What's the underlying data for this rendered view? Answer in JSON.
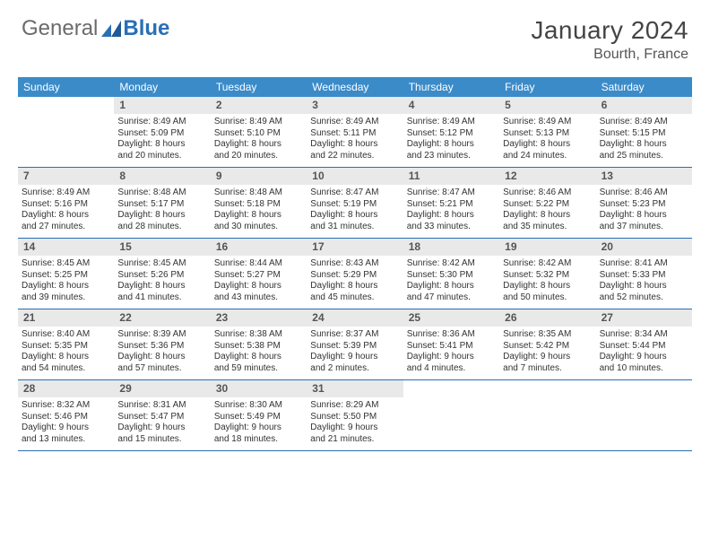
{
  "logo": {
    "text1": "General",
    "text2": "Blue"
  },
  "title": "January 2024",
  "location": "Bourth, France",
  "colors": {
    "header_bg": "#3b8bc9",
    "band_bg": "#e9e9e9",
    "rule": "#2a6fb5",
    "logo_gray": "#6b6b6b",
    "logo_blue": "#2a6fb5"
  },
  "weekdays": [
    "Sunday",
    "Monday",
    "Tuesday",
    "Wednesday",
    "Thursday",
    "Friday",
    "Saturday"
  ],
  "weeks": [
    [
      {
        "n": "",
        "sr": "",
        "ss": "",
        "d1": "",
        "d2": ""
      },
      {
        "n": "1",
        "sr": "Sunrise: 8:49 AM",
        "ss": "Sunset: 5:09 PM",
        "d1": "Daylight: 8 hours",
        "d2": "and 20 minutes."
      },
      {
        "n": "2",
        "sr": "Sunrise: 8:49 AM",
        "ss": "Sunset: 5:10 PM",
        "d1": "Daylight: 8 hours",
        "d2": "and 20 minutes."
      },
      {
        "n": "3",
        "sr": "Sunrise: 8:49 AM",
        "ss": "Sunset: 5:11 PM",
        "d1": "Daylight: 8 hours",
        "d2": "and 22 minutes."
      },
      {
        "n": "4",
        "sr": "Sunrise: 8:49 AM",
        "ss": "Sunset: 5:12 PM",
        "d1": "Daylight: 8 hours",
        "d2": "and 23 minutes."
      },
      {
        "n": "5",
        "sr": "Sunrise: 8:49 AM",
        "ss": "Sunset: 5:13 PM",
        "d1": "Daylight: 8 hours",
        "d2": "and 24 minutes."
      },
      {
        "n": "6",
        "sr": "Sunrise: 8:49 AM",
        "ss": "Sunset: 5:15 PM",
        "d1": "Daylight: 8 hours",
        "d2": "and 25 minutes."
      }
    ],
    [
      {
        "n": "7",
        "sr": "Sunrise: 8:49 AM",
        "ss": "Sunset: 5:16 PM",
        "d1": "Daylight: 8 hours",
        "d2": "and 27 minutes."
      },
      {
        "n": "8",
        "sr": "Sunrise: 8:48 AM",
        "ss": "Sunset: 5:17 PM",
        "d1": "Daylight: 8 hours",
        "d2": "and 28 minutes."
      },
      {
        "n": "9",
        "sr": "Sunrise: 8:48 AM",
        "ss": "Sunset: 5:18 PM",
        "d1": "Daylight: 8 hours",
        "d2": "and 30 minutes."
      },
      {
        "n": "10",
        "sr": "Sunrise: 8:47 AM",
        "ss": "Sunset: 5:19 PM",
        "d1": "Daylight: 8 hours",
        "d2": "and 31 minutes."
      },
      {
        "n": "11",
        "sr": "Sunrise: 8:47 AM",
        "ss": "Sunset: 5:21 PM",
        "d1": "Daylight: 8 hours",
        "d2": "and 33 minutes."
      },
      {
        "n": "12",
        "sr": "Sunrise: 8:46 AM",
        "ss": "Sunset: 5:22 PM",
        "d1": "Daylight: 8 hours",
        "d2": "and 35 minutes."
      },
      {
        "n": "13",
        "sr": "Sunrise: 8:46 AM",
        "ss": "Sunset: 5:23 PM",
        "d1": "Daylight: 8 hours",
        "d2": "and 37 minutes."
      }
    ],
    [
      {
        "n": "14",
        "sr": "Sunrise: 8:45 AM",
        "ss": "Sunset: 5:25 PM",
        "d1": "Daylight: 8 hours",
        "d2": "and 39 minutes."
      },
      {
        "n": "15",
        "sr": "Sunrise: 8:45 AM",
        "ss": "Sunset: 5:26 PM",
        "d1": "Daylight: 8 hours",
        "d2": "and 41 minutes."
      },
      {
        "n": "16",
        "sr": "Sunrise: 8:44 AM",
        "ss": "Sunset: 5:27 PM",
        "d1": "Daylight: 8 hours",
        "d2": "and 43 minutes."
      },
      {
        "n": "17",
        "sr": "Sunrise: 8:43 AM",
        "ss": "Sunset: 5:29 PM",
        "d1": "Daylight: 8 hours",
        "d2": "and 45 minutes."
      },
      {
        "n": "18",
        "sr": "Sunrise: 8:42 AM",
        "ss": "Sunset: 5:30 PM",
        "d1": "Daylight: 8 hours",
        "d2": "and 47 minutes."
      },
      {
        "n": "19",
        "sr": "Sunrise: 8:42 AM",
        "ss": "Sunset: 5:32 PM",
        "d1": "Daylight: 8 hours",
        "d2": "and 50 minutes."
      },
      {
        "n": "20",
        "sr": "Sunrise: 8:41 AM",
        "ss": "Sunset: 5:33 PM",
        "d1": "Daylight: 8 hours",
        "d2": "and 52 minutes."
      }
    ],
    [
      {
        "n": "21",
        "sr": "Sunrise: 8:40 AM",
        "ss": "Sunset: 5:35 PM",
        "d1": "Daylight: 8 hours",
        "d2": "and 54 minutes."
      },
      {
        "n": "22",
        "sr": "Sunrise: 8:39 AM",
        "ss": "Sunset: 5:36 PM",
        "d1": "Daylight: 8 hours",
        "d2": "and 57 minutes."
      },
      {
        "n": "23",
        "sr": "Sunrise: 8:38 AM",
        "ss": "Sunset: 5:38 PM",
        "d1": "Daylight: 8 hours",
        "d2": "and 59 minutes."
      },
      {
        "n": "24",
        "sr": "Sunrise: 8:37 AM",
        "ss": "Sunset: 5:39 PM",
        "d1": "Daylight: 9 hours",
        "d2": "and 2 minutes."
      },
      {
        "n": "25",
        "sr": "Sunrise: 8:36 AM",
        "ss": "Sunset: 5:41 PM",
        "d1": "Daylight: 9 hours",
        "d2": "and 4 minutes."
      },
      {
        "n": "26",
        "sr": "Sunrise: 8:35 AM",
        "ss": "Sunset: 5:42 PM",
        "d1": "Daylight: 9 hours",
        "d2": "and 7 minutes."
      },
      {
        "n": "27",
        "sr": "Sunrise: 8:34 AM",
        "ss": "Sunset: 5:44 PM",
        "d1": "Daylight: 9 hours",
        "d2": "and 10 minutes."
      }
    ],
    [
      {
        "n": "28",
        "sr": "Sunrise: 8:32 AM",
        "ss": "Sunset: 5:46 PM",
        "d1": "Daylight: 9 hours",
        "d2": "and 13 minutes."
      },
      {
        "n": "29",
        "sr": "Sunrise: 8:31 AM",
        "ss": "Sunset: 5:47 PM",
        "d1": "Daylight: 9 hours",
        "d2": "and 15 minutes."
      },
      {
        "n": "30",
        "sr": "Sunrise: 8:30 AM",
        "ss": "Sunset: 5:49 PM",
        "d1": "Daylight: 9 hours",
        "d2": "and 18 minutes."
      },
      {
        "n": "31",
        "sr": "Sunrise: 8:29 AM",
        "ss": "Sunset: 5:50 PM",
        "d1": "Daylight: 9 hours",
        "d2": "and 21 minutes."
      },
      {
        "n": "",
        "sr": "",
        "ss": "",
        "d1": "",
        "d2": ""
      },
      {
        "n": "",
        "sr": "",
        "ss": "",
        "d1": "",
        "d2": ""
      },
      {
        "n": "",
        "sr": "",
        "ss": "",
        "d1": "",
        "d2": ""
      }
    ]
  ]
}
